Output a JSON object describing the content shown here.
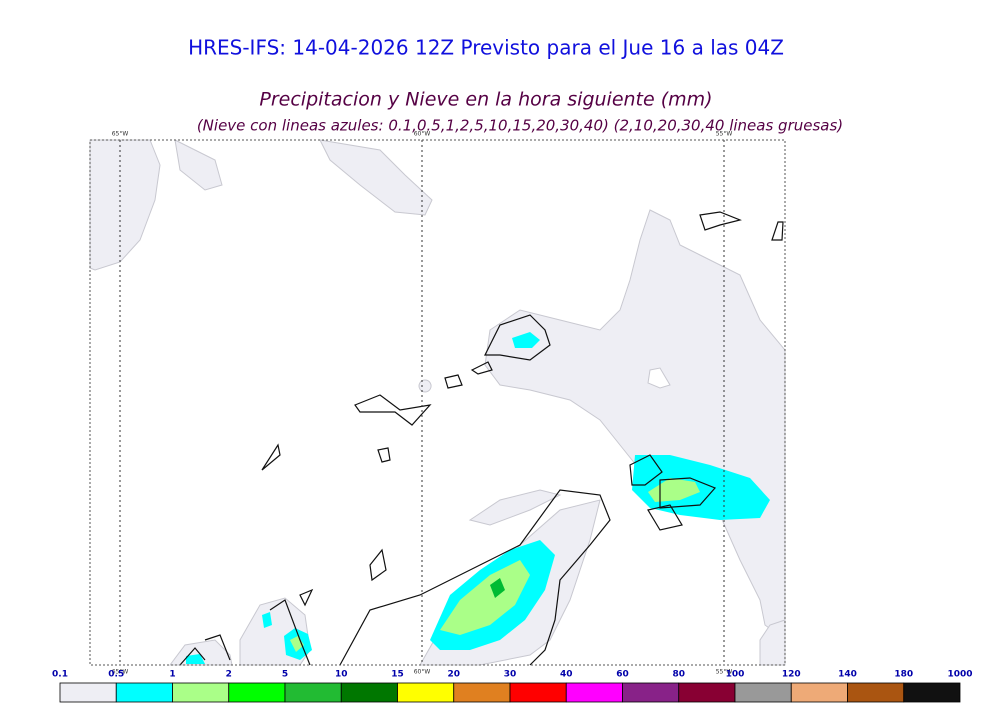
{
  "header": {
    "title": "HRES-IFS: 14-04-2026 12Z Previsto para el Jue 16 a las 04Z",
    "subtitle": "Precipitacion y Nieve en la hora siguiente (mm)",
    "note": "(Nieve con lineas azules: 0.1,0.5,1,2,5,10,15,20,30,40)  (2,10,20,30,40 lineas gruesas)"
  },
  "map": {
    "lon_labels": [
      "65°W",
      "60°W",
      "55°W"
    ]
  },
  "colorbar": {
    "labels": [
      0.1,
      0.5,
      1,
      2,
      5,
      10,
      15,
      20,
      30,
      40,
      60,
      80,
      100,
      120,
      140,
      180,
      1000
    ],
    "colors": [
      "#eeeef4",
      "#00ffff",
      "#aaff88",
      "#00ff00",
      "#22bb33",
      "#007700",
      "#ffff00",
      "#e08020",
      "#ff0000",
      "#ff00ff",
      "#882288",
      "#880033",
      "#999999",
      "#eeaa77",
      "#aa5511",
      "#111111"
    ]
  }
}
